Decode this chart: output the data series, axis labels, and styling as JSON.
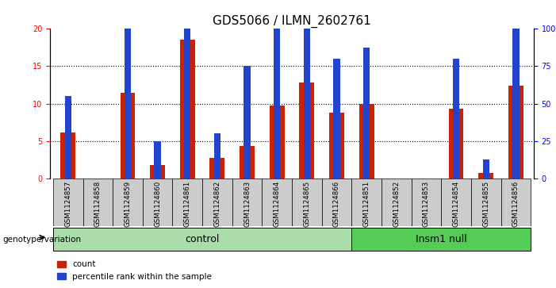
{
  "title": "GDS5066 / ILMN_2602761",
  "samples": [
    "GSM1124857",
    "GSM1124858",
    "GSM1124859",
    "GSM1124860",
    "GSM1124861",
    "GSM1124862",
    "GSM1124863",
    "GSM1124864",
    "GSM1124865",
    "GSM1124866",
    "GSM1124851",
    "GSM1124852",
    "GSM1124853",
    "GSM1124854",
    "GSM1124855",
    "GSM1124856"
  ],
  "count_values": [
    6.2,
    0.05,
    11.5,
    1.8,
    18.5,
    2.8,
    4.4,
    9.8,
    12.8,
    8.8,
    10.0,
    0.05,
    0.05,
    9.3,
    0.8,
    12.4
  ],
  "percentile_values": [
    11.0,
    0.0,
    20.0,
    5.0,
    27.5,
    6.0,
    15.0,
    22.5,
    22.5,
    16.0,
    17.5,
    0.0,
    0.0,
    16.0,
    2.5,
    21.5
  ],
  "n_control": 10,
  "n_insm1": 6,
  "ylim_left": [
    0,
    20
  ],
  "ylim_right": [
    0,
    100
  ],
  "yticks_left": [
    0,
    5,
    10,
    15,
    20
  ],
  "yticks_right": [
    0,
    25,
    50,
    75,
    100
  ],
  "ytick_right_labels": [
    "0",
    "25",
    "50",
    "75",
    "100%"
  ],
  "bar_color": "#cc2200",
  "blue_color": "#2244cc",
  "control_bg": "#aaddaa",
  "insm1_bg": "#55cc55",
  "sample_bg": "#cccccc",
  "bar_width": 0.5,
  "blue_bar_width": 0.22,
  "legend_count_label": "count",
  "legend_pct_label": "percentile rank within the sample",
  "genotype_label": "genotype/variation",
  "control_label": "control",
  "insm1_label": "Insm1 null",
  "title_fontsize": 11,
  "tick_fontsize": 7
}
